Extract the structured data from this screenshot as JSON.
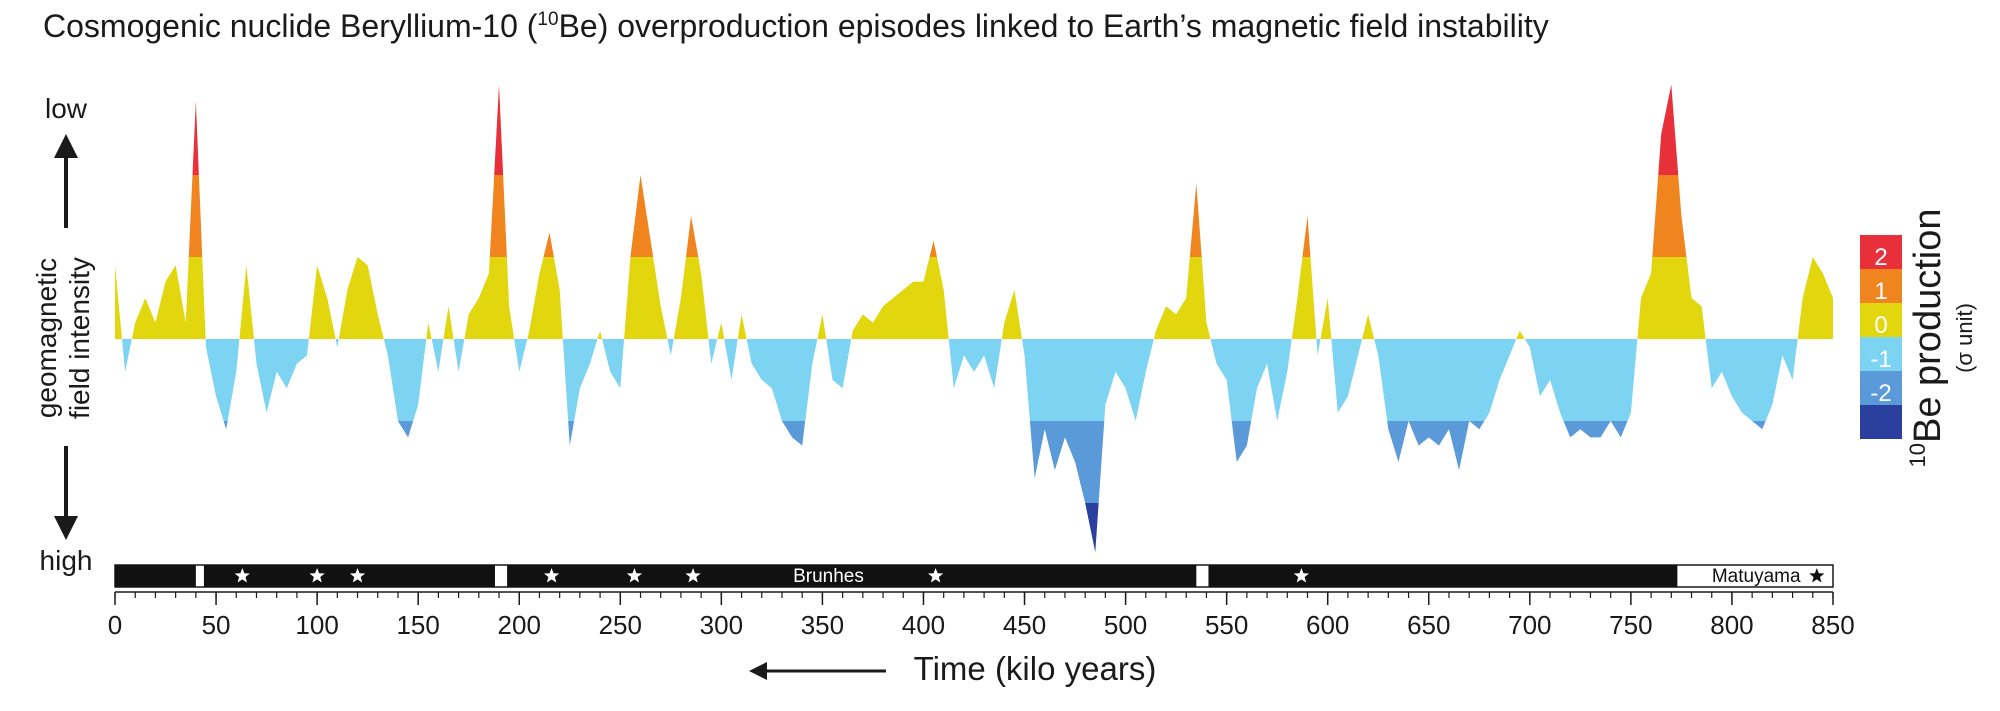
{
  "chart_data": {
    "type": "area",
    "title": {
      "before": "Cosmogenic nuclide Beryllium-10 (",
      "sup": "10",
      "after": "Be) overproduction episodes linked to Earth’s magnetic field instability"
    },
    "y_axis": {
      "top": "low",
      "bottom": "high",
      "label_1": "geomagnetic",
      "label_2": "field intensity"
    },
    "x_label": "Time (kilo years)",
    "legend": {
      "sup": "10",
      "title": "Be production",
      "unit": "(σ unit)",
      "levels": [
        2,
        1,
        0,
        -1,
        -2
      ],
      "colors": [
        "#e8303a",
        "#f0851f",
        "#e2d60e",
        "#7dd3f2",
        "#5a9ad8",
        "#2a3f9e"
      ]
    },
    "xlim": [
      0,
      850
    ],
    "ylim": [
      -2.7,
      3.2
    ],
    "xticks": [
      0,
      50,
      100,
      150,
      200,
      250,
      300,
      350,
      400,
      450,
      500,
      550,
      600,
      650,
      700,
      750,
      800,
      850
    ],
    "xminorticks": [
      0,
      10,
      20,
      30,
      40,
      50,
      60,
      70,
      80,
      90,
      100,
      110,
      120,
      130,
      140,
      150,
      160,
      170,
      180,
      190,
      200,
      210,
      220,
      230,
      240,
      250,
      260,
      270,
      280,
      290,
      300,
      310,
      320,
      330,
      340,
      350,
      360,
      370,
      380,
      390,
      400,
      410,
      420,
      430,
      440,
      450,
      460,
      470,
      480,
      490,
      500,
      510,
      520,
      530,
      540,
      550,
      560,
      570,
      580,
      590,
      600,
      610,
      620,
      630,
      640,
      650,
      660,
      670,
      680,
      690,
      700,
      710,
      720,
      730,
      740,
      750,
      760,
      770,
      780,
      790,
      800,
      810,
      820,
      830,
      840,
      850
    ],
    "x": [
      0,
      5,
      10,
      15,
      20,
      25,
      30,
      35,
      40,
      45,
      50,
      55,
      60,
      65,
      70,
      75,
      80,
      85,
      90,
      95,
      100,
      105,
      110,
      115,
      120,
      125,
      130,
      135,
      140,
      145,
      150,
      155,
      160,
      165,
      170,
      175,
      180,
      185,
      190,
      195,
      200,
      205,
      210,
      215,
      220,
      225,
      230,
      235,
      240,
      245,
      250,
      255,
      260,
      265,
      270,
      275,
      280,
      285,
      290,
      295,
      300,
      305,
      310,
      315,
      320,
      325,
      330,
      335,
      340,
      345,
      350,
      355,
      360,
      365,
      370,
      375,
      380,
      385,
      390,
      395,
      400,
      405,
      410,
      415,
      420,
      425,
      430,
      435,
      440,
      445,
      450,
      455,
      460,
      465,
      470,
      475,
      480,
      485,
      490,
      495,
      500,
      505,
      510,
      515,
      520,
      525,
      530,
      535,
      540,
      545,
      550,
      555,
      560,
      565,
      570,
      575,
      580,
      585,
      590,
      595,
      600,
      605,
      610,
      615,
      620,
      625,
      630,
      635,
      640,
      645,
      650,
      655,
      660,
      665,
      670,
      675,
      680,
      685,
      690,
      695,
      700,
      705,
      710,
      715,
      720,
      725,
      730,
      735,
      740,
      745,
      750,
      755,
      760,
      765,
      770,
      775,
      780,
      785,
      790,
      795,
      800,
      805,
      810,
      815,
      820,
      825,
      830,
      835,
      840,
      845,
      850
    ],
    "values": [
      0.9,
      -0.4,
      0.2,
      0.5,
      0.2,
      0.7,
      0.9,
      0.2,
      2.9,
      -0.1,
      -0.7,
      -1.1,
      -0.4,
      0.9,
      -0.3,
      -0.9,
      -0.4,
      -0.6,
      -0.3,
      -0.2,
      0.9,
      0.5,
      -0.1,
      0.6,
      1.0,
      0.9,
      0.3,
      -0.2,
      -1.0,
      -1.2,
      -0.8,
      0.2,
      -0.4,
      0.4,
      -0.4,
      0.3,
      0.5,
      0.8,
      3.1,
      0.4,
      -0.4,
      0.1,
      0.8,
      1.3,
      0.6,
      -1.3,
      -0.6,
      -0.3,
      0.1,
      -0.4,
      -0.6,
      1.0,
      2.0,
      1.2,
      0.4,
      -0.2,
      0.5,
      1.5,
      0.8,
      -0.3,
      0.2,
      -0.5,
      0.3,
      -0.3,
      -0.5,
      -0.6,
      -1.0,
      -1.2,
      -1.3,
      -0.3,
      0.3,
      -0.5,
      -0.6,
      0.1,
      0.3,
      0.2,
      0.4,
      0.5,
      0.6,
      0.7,
      0.7,
      1.2,
      0.6,
      -0.6,
      -0.2,
      -0.4,
      -0.2,
      -0.6,
      0.2,
      0.6,
      -0.2,
      -1.7,
      -1.1,
      -1.6,
      -1.2,
      -1.5,
      -2.0,
      -2.6,
      -0.8,
      -0.4,
      -0.6,
      -1.0,
      -0.4,
      0.1,
      0.4,
      0.3,
      0.5,
      1.9,
      0.2,
      -0.3,
      -0.5,
      -1.5,
      -1.3,
      -0.6,
      -0.3,
      -1.0,
      -0.4,
      0.5,
      1.5,
      -0.2,
      0.5,
      -0.9,
      -0.7,
      -0.2,
      0.3,
      -0.2,
      -1.1,
      -1.5,
      -1.0,
      -1.3,
      -1.2,
      -1.3,
      -1.1,
      -1.6,
      -1.0,
      -1.1,
      -0.9,
      -0.5,
      -0.2,
      0.1,
      -0.1,
      -0.7,
      -0.5,
      -0.9,
      -1.2,
      -1.1,
      -1.2,
      -1.2,
      -1.0,
      -1.2,
      -0.9,
      0.5,
      0.8,
      2.5,
      3.1,
      1.5,
      0.5,
      0.4,
      -0.6,
      -0.4,
      -0.7,
      -0.9,
      -1.0,
      -1.1,
      -0.8,
      -0.2,
      -0.5,
      0.5,
      1.0,
      0.8,
      0.5
    ],
    "polarity": {
      "normal_intervals": [
        [
          0,
          40
        ],
        [
          44,
          188
        ],
        [
          194,
          535
        ],
        [
          541,
          773
        ]
      ],
      "stars": [
        63,
        100,
        120,
        216,
        257,
        286,
        406,
        587,
        842
      ],
      "labels": [
        {
          "text": "Brunhes",
          "x": 353
        },
        {
          "text": "Matuyama",
          "x": 812
        }
      ]
    }
  }
}
